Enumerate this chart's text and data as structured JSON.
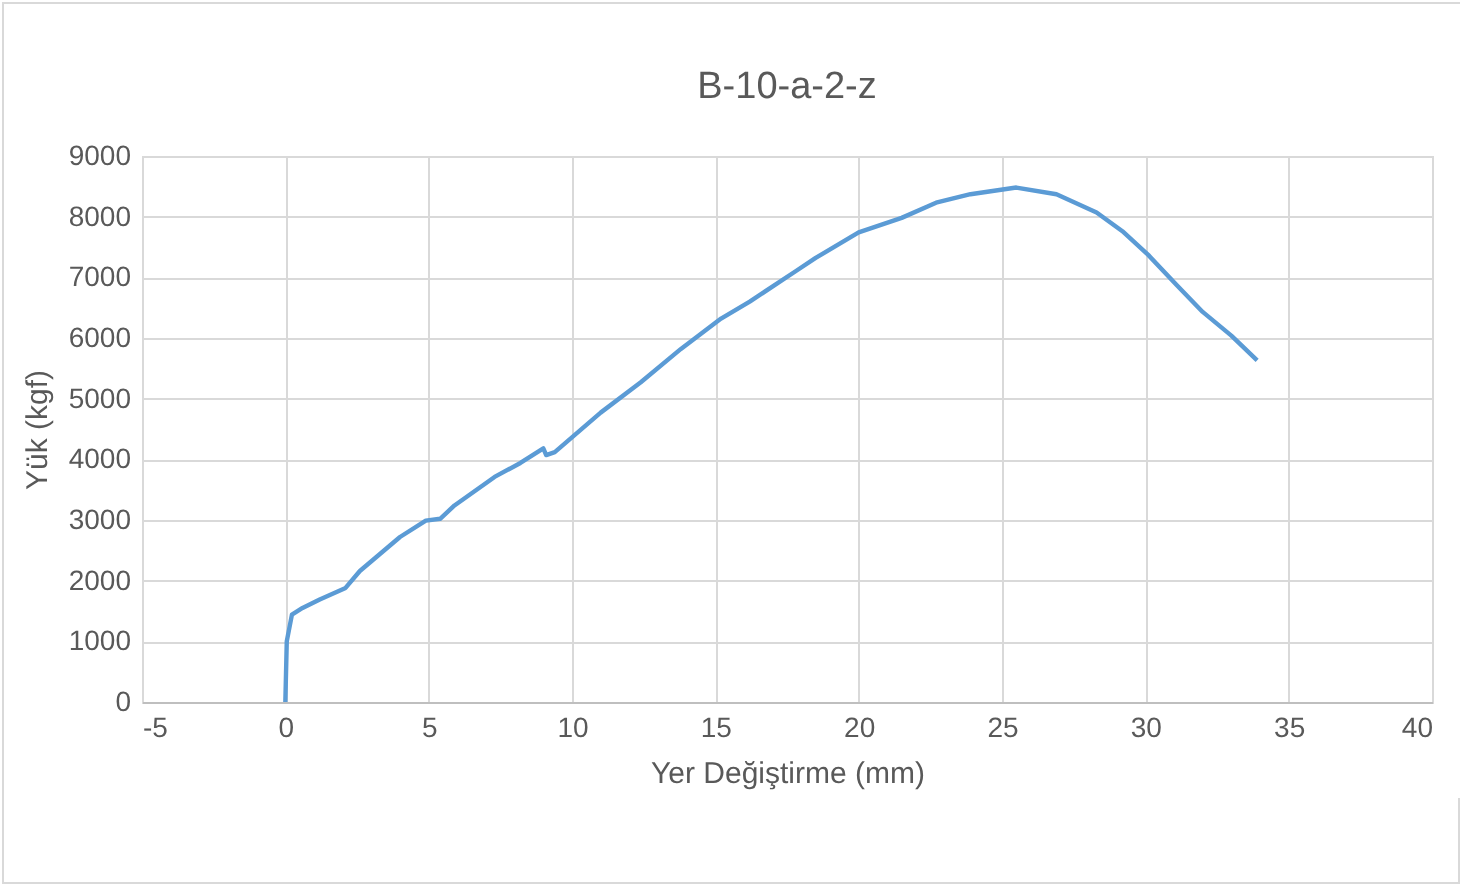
{
  "chart_data": {
    "type": "line",
    "title": "B-10-a-2-z",
    "xlabel": "Yer Değiştirme (mm)",
    "ylabel": "Yük (kgf)",
    "xlim": [
      -5,
      40
    ],
    "xticks": [
      -5,
      0,
      5,
      10,
      15,
      20,
      25,
      30,
      35,
      40
    ],
    "ylim": [
      0,
      9000
    ],
    "yticks": [
      0,
      1000,
      2000,
      3000,
      4000,
      5000,
      6000,
      7000,
      8000,
      9000
    ],
    "grid": true,
    "marker": "none",
    "line_style": "solid",
    "series": [
      {
        "color": "#5b9bd5",
        "x": [
          0,
          0.05,
          0.23,
          0.6,
          1.2,
          2.1,
          2.6,
          3.3,
          4.0,
          4.9,
          5.4,
          5.9,
          7.3,
          8.2,
          9.0,
          9.1,
          9.4,
          11.0,
          12.4,
          13.8,
          15.2,
          16.2,
          17.8,
          18.5,
          20.0,
          21.5,
          22.7,
          23.9,
          25.5,
          26.9,
          28.3,
          29.2,
          30.1,
          31.1,
          32.0,
          33.0,
          33.9
        ],
        "values": [
          0,
          1000,
          1440,
          1550,
          1690,
          1880,
          2160,
          2440,
          2720,
          2990,
          3020,
          3240,
          3710,
          3940,
          4180,
          4070,
          4120,
          4770,
          5270,
          5820,
          6320,
          6600,
          7100,
          7320,
          7740,
          7980,
          8230,
          8370,
          8480,
          8370,
          8070,
          7760,
          7370,
          6870,
          6430,
          6040,
          5630
        ]
      }
    ]
  }
}
